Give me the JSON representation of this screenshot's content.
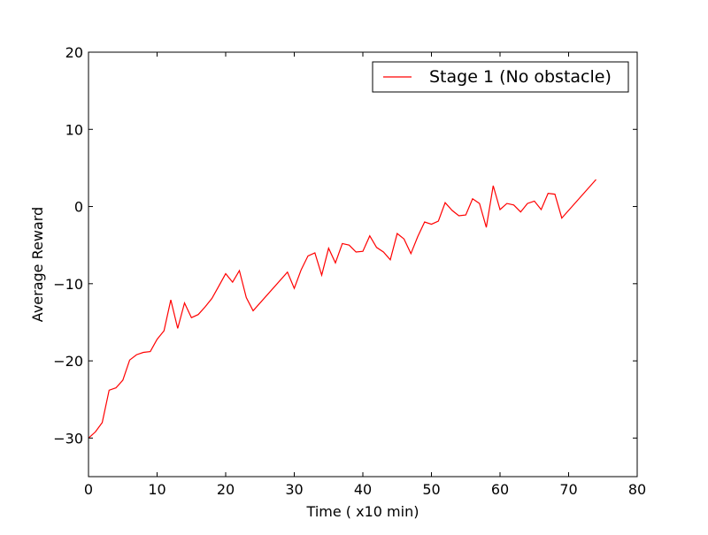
{
  "chart_data": {
    "type": "line",
    "xlabel": "Time ( x10 min)",
    "ylabel": "Average Reward",
    "xlim": [
      0,
      80
    ],
    "ylim": [
      -35,
      20
    ],
    "xticks": [
      0,
      10,
      20,
      30,
      40,
      50,
      60,
      70,
      80
    ],
    "yticks": [
      -30,
      -20,
      -10,
      0,
      10,
      20
    ],
    "xtick_labels": [
      "0",
      "10",
      "20",
      "30",
      "40",
      "50",
      "60",
      "70",
      "80"
    ],
    "ytick_labels": [
      "−30",
      "−20",
      "−10",
      "0",
      "10",
      "20"
    ],
    "grid": false,
    "legend_position": "top-right",
    "series": [
      {
        "name": "Stage 1 (No obstacle)",
        "color": "#ff0000",
        "x": [
          0,
          1,
          2,
          3,
          4,
          5,
          6,
          7,
          8,
          9,
          10,
          11,
          12,
          13,
          14,
          15,
          16,
          17,
          18,
          19,
          20,
          21,
          22,
          23,
          24,
          29,
          30,
          31,
          32,
          33,
          34,
          35,
          36,
          37,
          38,
          39,
          40,
          41,
          42,
          43,
          44,
          45,
          46,
          47,
          48,
          49,
          50,
          51,
          52,
          53,
          54,
          55,
          56,
          57,
          58,
          59,
          60,
          61,
          62,
          63,
          64,
          65,
          66,
          67,
          68,
          69,
          74
        ],
        "y": [
          -30.0,
          -29.2,
          -28.0,
          -23.8,
          -23.5,
          -22.5,
          -19.9,
          -19.2,
          -18.9,
          -18.8,
          -17.2,
          -16.1,
          -12.1,
          -15.8,
          -12.5,
          -14.4,
          -14.0,
          -13.0,
          -11.9,
          -10.3,
          -8.7,
          -9.8,
          -8.3,
          -11.8,
          -13.5,
          -8.5,
          -10.6,
          -8.2,
          -6.4,
          -6.0,
          -8.9,
          -5.4,
          -7.3,
          -4.8,
          -5.0,
          -5.9,
          -5.8,
          -3.8,
          -5.3,
          -5.9,
          -6.9,
          -3.5,
          -4.2,
          -6.1,
          -3.9,
          -2.0,
          -2.3,
          -1.9,
          0.5,
          -0.5,
          -1.2,
          -1.1,
          1.0,
          0.4,
          -2.7,
          2.7,
          -0.4,
          0.4,
          0.2,
          -0.7,
          0.4,
          0.7,
          -0.4,
          1.7,
          1.6,
          -1.5,
          3.5
        ]
      }
    ]
  }
}
